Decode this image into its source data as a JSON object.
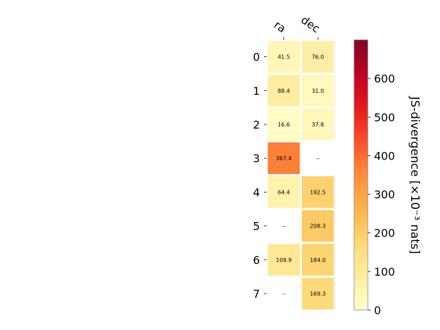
{
  "chart_data": {
    "type": "heatmap",
    "columns": [
      "ra",
      "dec"
    ],
    "rows": [
      "0",
      "1",
      "2",
      "3",
      "4",
      "5",
      "6",
      "7"
    ],
    "values": [
      [
        41.5,
        76.0
      ],
      [
        88.4,
        31.0
      ],
      [
        16.6,
        37.8
      ],
      [
        367.4,
        null
      ],
      [
        64.4,
        192.5
      ],
      [
        null,
        208.3
      ],
      [
        109.9,
        184.0
      ],
      [
        null,
        169.3
      ]
    ],
    "cell_labels": [
      [
        "41.5",
        "76.0"
      ],
      [
        "88.4",
        "31.0"
      ],
      [
        "16.6",
        "37.8"
      ],
      [
        "367.4",
        "--"
      ],
      [
        "64.4",
        "192.5"
      ],
      [
        "--",
        "208.3"
      ],
      [
        "109.9",
        "184.0"
      ],
      [
        "--",
        "169.3"
      ]
    ],
    "colorbar": {
      "label": "JS-divergence [×10⁻³ nats]",
      "range": [
        0,
        700
      ],
      "ticks": [
        "0",
        "100",
        "200",
        "300",
        "400",
        "500",
        "600"
      ],
      "colormap": [
        "#ffffcc",
        "#ffeda0",
        "#fed976",
        "#feb24c",
        "#fd8d3c",
        "#fc4e2a",
        "#e31a1c",
        "#bd0026",
        "#800026"
      ]
    },
    "grid": false
  }
}
